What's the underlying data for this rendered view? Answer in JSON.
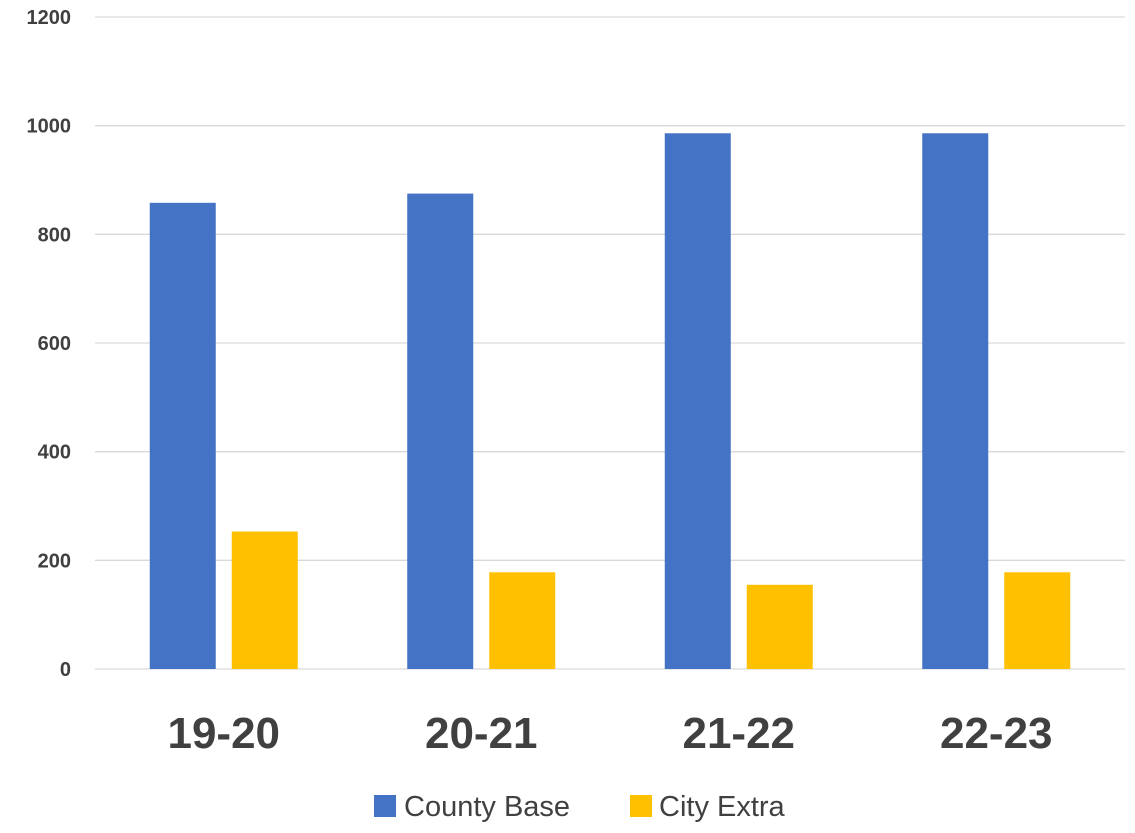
{
  "chart_data": {
    "type": "bar",
    "categories": [
      "19-20",
      "20-21",
      "21-22",
      "22-23"
    ],
    "series": [
      {
        "name": "County Base",
        "values": [
          858,
          875,
          986,
          986
        ],
        "color": "#4472c4"
      },
      {
        "name": "City Extra",
        "values": [
          253,
          178,
          155,
          178
        ],
        "color": "#ffc000"
      }
    ],
    "title": "",
    "xlabel": "",
    "ylabel": "",
    "ylim": [
      0,
      1200
    ],
    "yticks": [
      "0",
      "200",
      "400",
      "600",
      "800",
      "1000",
      "1200"
    ],
    "grid": true,
    "legend_position": "bottom"
  }
}
